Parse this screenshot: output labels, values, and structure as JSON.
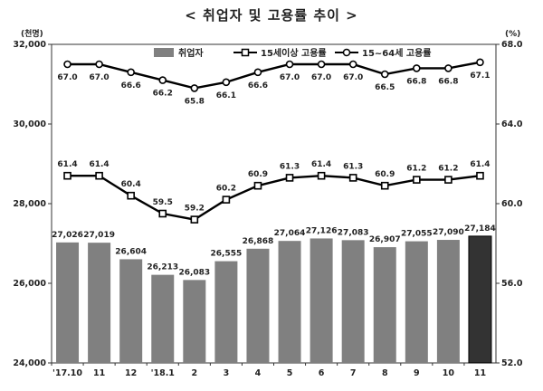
{
  "chart_data": {
    "type": "bar+line",
    "title": "< 취업자 및 고용률 추이 >",
    "categories": [
      "'17.10",
      "11",
      "12",
      "'18.1",
      "2",
      "3",
      "4",
      "5",
      "6",
      "7",
      "8",
      "9",
      "10",
      "11"
    ],
    "y_left": {
      "unit": "(천명)",
      "min": 24000,
      "max": 32000,
      "ticks": [
        "24,000",
        "26,000",
        "28,000",
        "30,000",
        "32,000"
      ]
    },
    "y_right": {
      "unit": "(%)",
      "min": 52.0,
      "max": 68.0,
      "ticks": [
        "52.0",
        "56.0",
        "60.0",
        "64.0",
        "68.0"
      ]
    },
    "series": [
      {
        "name": "취업자",
        "type": "bar",
        "axis": "left",
        "values": [
          27026,
          27019,
          26604,
          26213,
          26083,
          26555,
          26868,
          27064,
          27126,
          27083,
          26907,
          27055,
          27090,
          27184
        ],
        "labels": [
          "27,026",
          "27,019",
          "26,604",
          "26,213",
          "26,083",
          "26,555",
          "26,868",
          "27,064",
          "27,126",
          "27,083",
          "26,907",
          "27,055",
          "27,090",
          "27,184"
        ],
        "color": "#808080",
        "highlight_color": "#333333",
        "highlight_index": 13
      },
      {
        "name": "15세이상 고용률",
        "type": "line",
        "axis": "right",
        "marker": "square",
        "values": [
          61.4,
          61.4,
          60.4,
          59.5,
          59.2,
          60.2,
          60.9,
          61.3,
          61.4,
          61.3,
          60.9,
          61.2,
          61.2,
          61.4
        ],
        "labels": [
          "61.4",
          "61.4",
          "60.4",
          "59.5",
          "59.2",
          "60.2",
          "60.9",
          "61.3",
          "61.4",
          "61.3",
          "60.9",
          "61.2",
          "61.2",
          "61.4"
        ]
      },
      {
        "name": "15~64세 고용률",
        "type": "line",
        "axis": "right",
        "marker": "circle",
        "values": [
          67.0,
          67.0,
          66.6,
          66.2,
          65.8,
          66.1,
          66.6,
          67.0,
          67.0,
          67.0,
          66.5,
          66.8,
          66.8,
          67.1
        ],
        "labels": [
          "67.0",
          "67.0",
          "66.6",
          "66.2",
          "65.8",
          "66.1",
          "66.6",
          "67.0",
          "67.0",
          "67.0",
          "66.5",
          "66.8",
          "66.8",
          "67.1"
        ]
      }
    ]
  }
}
